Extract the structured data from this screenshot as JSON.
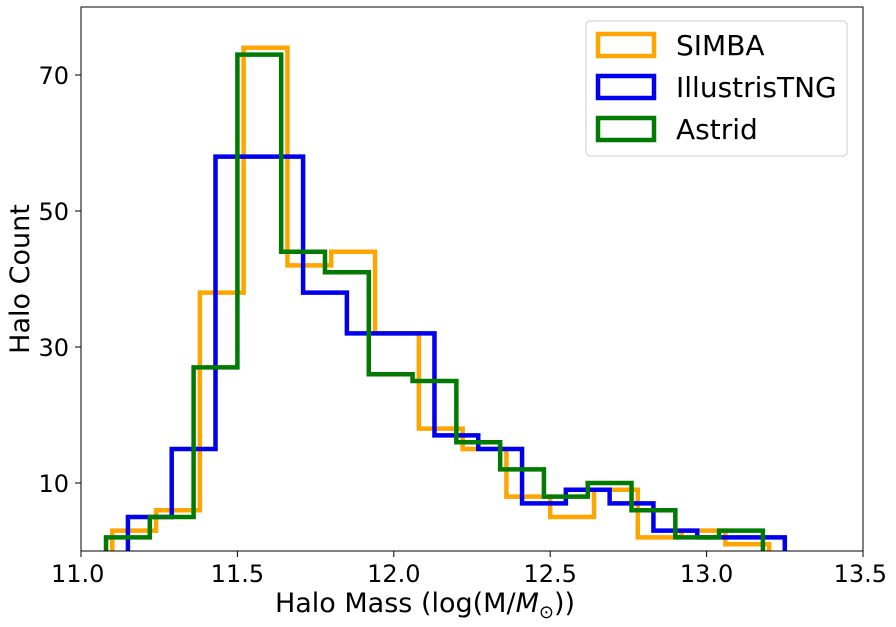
{
  "chart_data": {
    "type": "step-histogram",
    "xlabel": "Halo Mass (log(M/",
    "xlabel_symbol": "M",
    "xlabel_sub": "⊙",
    "xlabel_end": "))",
    "ylabel": "Halo Count",
    "xlim": [
      11.0,
      13.5
    ],
    "ylim": [
      0,
      80
    ],
    "xticks": [
      "11.0",
      "11.5",
      "12.0",
      "12.5",
      "13.0",
      "13.5"
    ],
    "yticks": [
      "10",
      "30",
      "50",
      "70"
    ],
    "ytick_values": [
      10,
      30,
      50,
      70
    ],
    "xtick_values": [
      11.0,
      11.5,
      12.0,
      12.5,
      13.0,
      13.5
    ],
    "legend_position": "top-right",
    "series": [
      {
        "name": "SIMBA",
        "color": "#ffa500",
        "edges": [
          11.1,
          11.24,
          11.38,
          11.52,
          11.66,
          11.8,
          11.94,
          12.08,
          12.22,
          12.36,
          12.5,
          12.64,
          12.78,
          12.92,
          13.06,
          13.2
        ],
        "counts": [
          3,
          6,
          38,
          74,
          42,
          44,
          32,
          18,
          15,
          8,
          5,
          9,
          2,
          3,
          1
        ]
      },
      {
        "name": "IllustrisTNG",
        "color": "#0000ee",
        "edges": [
          11.15,
          11.29,
          11.43,
          11.57,
          11.71,
          11.85,
          11.99,
          12.13,
          12.27,
          12.41,
          12.55,
          12.69,
          12.83,
          12.97,
          13.11,
          13.25
        ],
        "counts": [
          5,
          15,
          58,
          58,
          38,
          32,
          32,
          17,
          15,
          7,
          9,
          7,
          3,
          2,
          2
        ]
      },
      {
        "name": "Astrid",
        "color": "#007a00",
        "edges": [
          11.08,
          11.22,
          11.36,
          11.5,
          11.64,
          11.78,
          11.92,
          12.06,
          12.2,
          12.34,
          12.48,
          12.62,
          12.76,
          12.9,
          13.04,
          13.18
        ],
        "counts": [
          2,
          5,
          27,
          73,
          44,
          41,
          26,
          25,
          16,
          12,
          8,
          10,
          6,
          2,
          3
        ]
      }
    ]
  }
}
